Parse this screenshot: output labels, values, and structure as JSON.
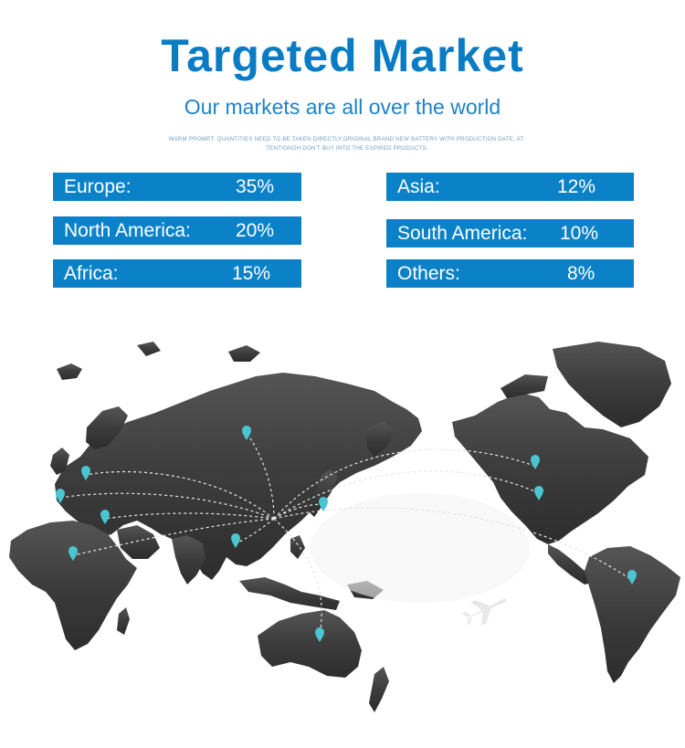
{
  "header": {
    "title": "Targeted Market",
    "subtitle": "Our markets are all over the world",
    "warm_prompt": "WARM PROMPT: QUANTITIES NEED TO BE TAKEN DIRECTLY.ORIGINAL BRAND NEW BATTERY WITH PRODUCTION DATE, AT-TENTIONOH DON'T BUY INTO THE EXPIRED PRODUCTS."
  },
  "markets": [
    {
      "label": "Europe:",
      "value": "35%"
    },
    {
      "label": "North America:",
      "value": "20%"
    },
    {
      "label": "Africa:",
      "value": "15%"
    },
    {
      "label": "Asia:",
      "value": "12%"
    },
    {
      "label": "South America:",
      "value": "10%"
    },
    {
      "label": "Others:",
      "value": "8%"
    }
  ],
  "colors": {
    "accent": "#0b82c8",
    "title": "#0a7cc4",
    "map_land": "#3f3f3f",
    "pin": "#49c6cf"
  },
  "map": {
    "icons": [
      "map-pin-icon",
      "airplane-icon"
    ]
  }
}
